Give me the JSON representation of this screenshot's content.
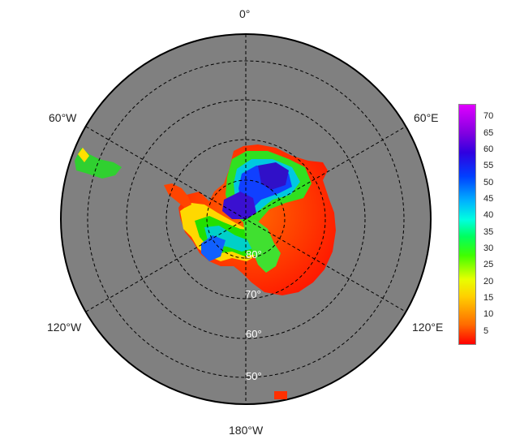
{
  "map": {
    "projection": "south-polar-stereographic",
    "ocean_color": "#808080",
    "meridian_labels": [
      {
        "text": "0°",
        "pos": "top"
      },
      {
        "text": "60°E",
        "pos": "upper-right"
      },
      {
        "text": "120°E",
        "pos": "lower-right"
      },
      {
        "text": "180°W",
        "pos": "bottom"
      },
      {
        "text": "120°W",
        "pos": "lower-left"
      },
      {
        "text": "60°W",
        "pos": "upper-left"
      }
    ],
    "latitude_labels": [
      "80°",
      "70°",
      "60°",
      "50°"
    ],
    "colorbar": {
      "ticks": [
        "70",
        "65",
        "60",
        "55",
        "50",
        "45",
        "40",
        "35",
        "30",
        "25",
        "20",
        "15",
        "10",
        "5"
      ],
      "range": [
        1,
        74
      ],
      "colormap": "rainbow-red-to-magenta"
    }
  }
}
